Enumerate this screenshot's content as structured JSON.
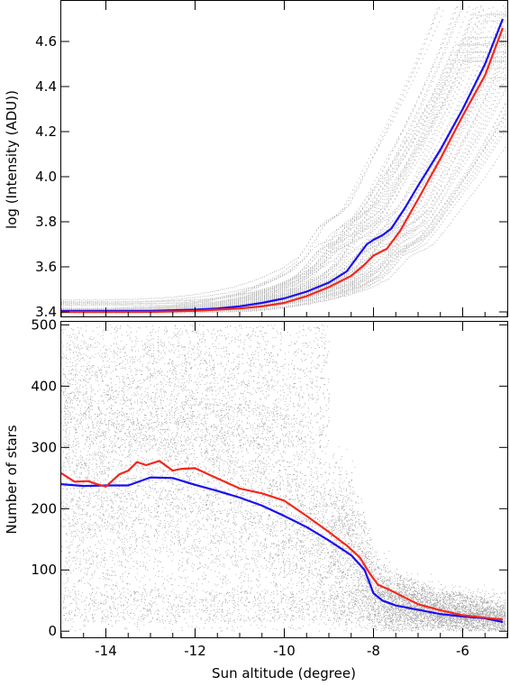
{
  "colors": {
    "background": "#ffffff",
    "scatter": "#a8a8a8",
    "blue_curve": "#1a0ef0",
    "red_curve": "#f2281e",
    "axes": "#000000"
  },
  "chart_data": [
    {
      "type": "line",
      "panel": "top",
      "xlabel": "",
      "ylabel": "log (Intensity (ADU))",
      "xlim": [
        -15,
        -5
      ],
      "ylim": [
        3.38,
        4.78
      ],
      "yticks": [
        "3.4",
        "3.6",
        "3.8",
        "4.0",
        "4.2",
        "4.4",
        "4.6"
      ],
      "ytick_values": [
        3.4,
        3.6,
        3.8,
        4.0,
        4.2,
        4.4,
        4.6
      ],
      "grid": false,
      "background_scatter": "grey dotted traces of individual nights, spreading from ~3.4 at -15 to 4.0-4.8 at -5",
      "series": [
        {
          "color": "#1a0ef0",
          "x": [
            -15,
            -14,
            -13,
            -12,
            -11.5,
            -11,
            -10.5,
            -10,
            -9.5,
            -9,
            -8.6,
            -8.3,
            -8.15,
            -8.0,
            -7.8,
            -7.6,
            -7.3,
            -7.0,
            -6.5,
            -6.0,
            -5.5,
            -5.1
          ],
          "y": [
            3.405,
            3.405,
            3.405,
            3.41,
            3.415,
            3.425,
            3.44,
            3.46,
            3.49,
            3.53,
            3.58,
            3.66,
            3.7,
            3.72,
            3.74,
            3.77,
            3.86,
            3.96,
            4.12,
            4.3,
            4.5,
            4.7
          ]
        },
        {
          "color": "#f2281e",
          "x": [
            -15,
            -14,
            -13,
            -12,
            -11.5,
            -11,
            -10.5,
            -10,
            -9.5,
            -9,
            -8.5,
            -8.2,
            -8.0,
            -7.7,
            -7.4,
            -7.0,
            -6.5,
            -6.0,
            -5.5,
            -5.1
          ],
          "y": [
            3.4,
            3.4,
            3.4,
            3.405,
            3.41,
            3.415,
            3.425,
            3.44,
            3.47,
            3.51,
            3.56,
            3.61,
            3.65,
            3.68,
            3.76,
            3.9,
            4.08,
            4.27,
            4.45,
            4.66
          ]
        }
      ]
    },
    {
      "type": "scatter",
      "panel": "bottom",
      "xlabel": "Sun altitude (degree)",
      "ylabel": "Number of stars",
      "xlim": [
        -15,
        -5
      ],
      "ylim": [
        -10,
        505
      ],
      "xticks": [
        "-14",
        "-12",
        "-10",
        "-8",
        "-6"
      ],
      "xtick_values": [
        -14,
        -12,
        -10,
        -8,
        -6
      ],
      "yticks": [
        "0",
        "100",
        "200",
        "300",
        "400",
        "500"
      ],
      "ytick_values": [
        0,
        100,
        200,
        300,
        400,
        500
      ],
      "grid": false,
      "background_scatter": "dense grey point cloud of per-frame star counts, 0-500, thinning toward -5",
      "series": [
        {
          "color": "#1a0ef0",
          "x": [
            -15,
            -14.5,
            -14,
            -13.5,
            -13,
            -12.5,
            -12,
            -11.5,
            -11,
            -10.5,
            -10,
            -9.5,
            -9,
            -8.5,
            -8.2,
            -8.0,
            -7.8,
            -7.5,
            -7.0,
            -6.5,
            -6.0,
            -5.5,
            -5.1
          ],
          "y": [
            240,
            237,
            238,
            238,
            251,
            250,
            239,
            229,
            218,
            205,
            188,
            170,
            148,
            124,
            100,
            62,
            50,
            42,
            35,
            28,
            24,
            21,
            15
          ]
        },
        {
          "color": "#f2281e",
          "x": [
            -15,
            -14.7,
            -14.4,
            -14.2,
            -14.0,
            -13.7,
            -13.5,
            -13.3,
            -13.1,
            -12.8,
            -12.5,
            -12.3,
            -12.0,
            -11.7,
            -11.3,
            -11.0,
            -10.5,
            -10.0,
            -9.5,
            -9.0,
            -8.6,
            -8.3,
            -8.1,
            -7.9,
            -7.6,
            -7.3,
            -7.0,
            -6.5,
            -6.0,
            -5.5,
            -5.1
          ],
          "y": [
            258,
            244,
            245,
            240,
            236,
            256,
            262,
            276,
            271,
            278,
            262,
            265,
            266,
            256,
            243,
            233,
            225,
            213,
            188,
            162,
            140,
            120,
            96,
            76,
            66,
            55,
            44,
            34,
            26,
            22,
            19
          ]
        }
      ]
    }
  ]
}
